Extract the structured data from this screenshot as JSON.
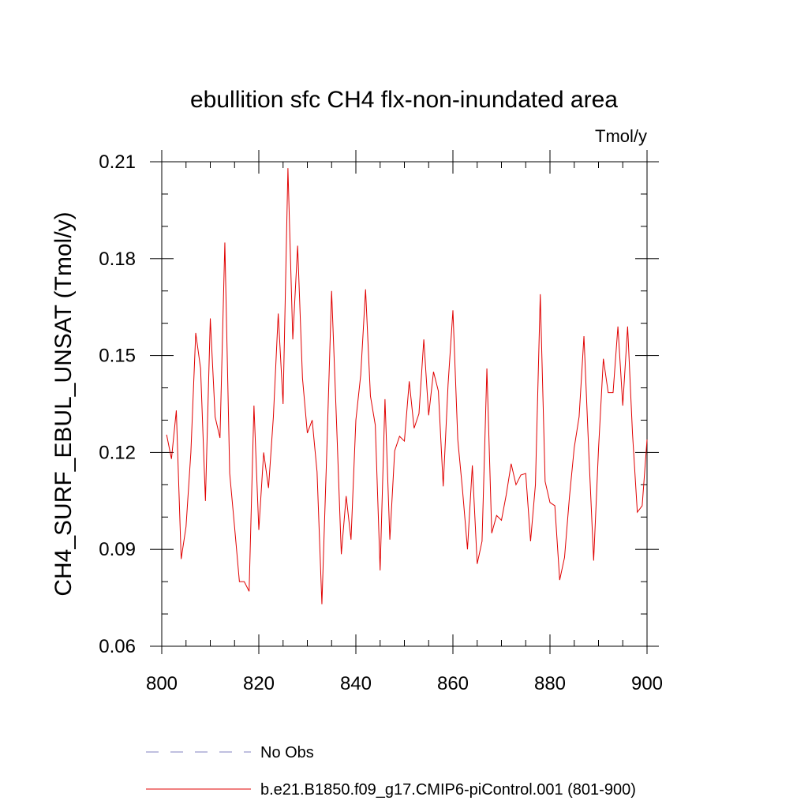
{
  "chart_data": {
    "type": "line",
    "title": "ebullition sfc CH4 flx-non-inundated area",
    "units_label": "Tmol/y",
    "xlabel": "",
    "ylabel": "CH4_SURF_EBUL_UNSAT  (Tmol/y)",
    "xlim": [
      800,
      900
    ],
    "ylim": [
      0.06,
      0.21
    ],
    "x_ticks": [
      800,
      820,
      840,
      860,
      880,
      900
    ],
    "x_tick_labels": [
      "800",
      "820",
      "840",
      "860",
      "880",
      "900"
    ],
    "y_ticks": [
      0.06,
      0.09,
      0.12,
      0.15,
      0.18,
      0.21
    ],
    "y_tick_labels": [
      "0.06",
      "0.09",
      "0.12",
      "0.15",
      "0.18",
      "0.21"
    ],
    "grid": false,
    "legend_position": "bottom",
    "series": [
      {
        "name": "No Obs",
        "color": "#8080c0",
        "style": "dashed",
        "x": [],
        "values": []
      },
      {
        "name": "b.e21.B1850.f09_g17.CMIP6-piControl.001 (801-900)",
        "color": "#e00000",
        "style": "solid",
        "x": [
          801,
          802,
          803,
          804,
          805,
          806,
          807,
          808,
          809,
          810,
          811,
          812,
          813,
          814,
          815,
          816,
          817,
          818,
          819,
          820,
          821,
          822,
          823,
          824,
          825,
          826,
          827,
          828,
          829,
          830,
          831,
          832,
          833,
          834,
          835,
          836,
          837,
          838,
          839,
          840,
          841,
          842,
          843,
          844,
          845,
          846,
          847,
          848,
          849,
          850,
          851,
          852,
          853,
          854,
          855,
          856,
          857,
          858,
          859,
          860,
          861,
          862,
          863,
          864,
          865,
          866,
          867,
          868,
          869,
          870,
          871,
          872,
          873,
          874,
          875,
          876,
          877,
          878,
          879,
          880,
          881,
          882,
          883,
          884,
          885,
          886,
          887,
          888,
          889,
          890,
          891,
          892,
          893,
          894,
          895,
          896,
          897,
          898,
          899,
          900
        ],
        "values": [
          0.1255,
          0.118,
          0.133,
          0.087,
          0.097,
          0.12,
          0.157,
          0.146,
          0.105,
          0.1615,
          0.131,
          0.1245,
          0.185,
          0.1135,
          0.097,
          0.08,
          0.08,
          0.077,
          0.1345,
          0.096,
          0.12,
          0.109,
          0.131,
          0.163,
          0.135,
          0.208,
          0.155,
          0.184,
          0.143,
          0.126,
          0.13,
          0.114,
          0.073,
          0.12,
          0.17,
          0.13,
          0.0885,
          0.1065,
          0.093,
          0.13,
          0.144,
          0.1705,
          0.1375,
          0.1285,
          0.0835,
          0.1365,
          0.093,
          0.1205,
          0.125,
          0.1235,
          0.142,
          0.1275,
          0.132,
          0.155,
          0.1315,
          0.145,
          0.139,
          0.1095,
          0.141,
          0.164,
          0.124,
          0.108,
          0.09,
          0.116,
          0.0855,
          0.0925,
          0.146,
          0.095,
          0.1005,
          0.099,
          0.107,
          0.1165,
          0.11,
          0.113,
          0.1135,
          0.0925,
          0.11,
          0.169,
          0.111,
          0.1045,
          0.1035,
          0.0805,
          0.0875,
          0.106,
          0.1215,
          0.131,
          0.156,
          0.12,
          0.0865,
          0.121,
          0.149,
          0.1385,
          0.1385,
          0.159,
          0.1345,
          0.159,
          0.126,
          0.1015,
          0.1035,
          0.124
        ]
      }
    ]
  }
}
